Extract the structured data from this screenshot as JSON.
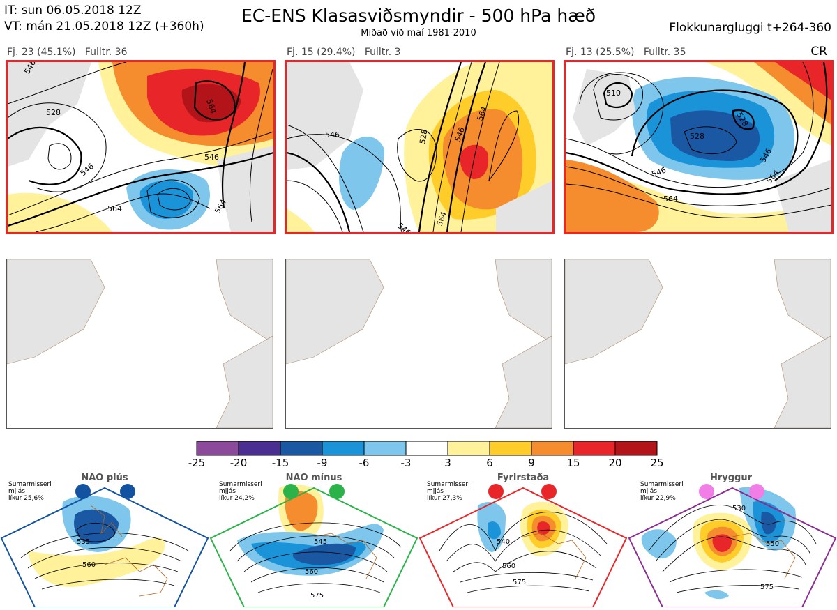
{
  "header": {
    "it_line": "IT: sun 06.05.2018 12Z",
    "vt_line": "VT: mán 21.05.2018 12Z  (+360h)",
    "title": "EC-ENS Klasasviðsmyndir - 500 hPa hæð",
    "subtitle": "Miðað við maí 1981-2010",
    "window": "Flokkunargluggi t+264-360"
  },
  "clusters": [
    {
      "caption": "Fj. 23 (45.1%)   Fulltr. 36",
      "contour_labels": [
        "528",
        "546",
        "546",
        "564",
        "564",
        "564",
        "546"
      ]
    },
    {
      "caption": "Fj. 15 (29.4%)   Fulltr. 3",
      "contour_labels": [
        "546",
        "528",
        "546",
        "564",
        "546",
        "564"
      ]
    },
    {
      "caption": "Fj. 13 (25.5%)   Fulltr. 35",
      "tag": "CR",
      "contour_labels": [
        "510",
        "528",
        "546",
        "564",
        "546",
        "528",
        "564"
      ]
    }
  ],
  "colorbar": {
    "ticks": [
      "-25",
      "-20",
      "-15",
      "-9",
      "-6",
      "-3",
      "3",
      "6",
      "9",
      "15",
      "20",
      "25"
    ],
    "colors": [
      "#8b4a9a",
      "#4a2e91",
      "#1b58a3",
      "#1a93d8",
      "#7ec6ec",
      "#ffffff",
      "#fff29a",
      "#ffcd2a",
      "#f58c2e",
      "#e8262a",
      "#b3141a"
    ]
  },
  "regimes": [
    {
      "name": "NAO plús",
      "info": [
        "Sumarmisseri",
        "mjjás",
        "líkur 25,6%"
      ],
      "dot_color": "#1352a0",
      "frame_color": "#1352a0",
      "labels": [
        "535",
        "560"
      ]
    },
    {
      "name": "NAO mínus",
      "info": [
        "Sumarmisseri",
        "mjjás",
        "líkur 24,2%"
      ],
      "dot_color": "#2bb34a",
      "frame_color": "#2bb34a",
      "labels": [
        "545",
        "560",
        "575"
      ]
    },
    {
      "name": "Fyrirstaða",
      "info": [
        "Sumarmisseri",
        "mjjás",
        "líkur 27,3%"
      ],
      "dot_color": "#e8262a",
      "frame_color": "#e8262a",
      "labels": [
        "540",
        "560",
        "575"
      ]
    },
    {
      "name": "Hryggur",
      "info": [
        "Sumarmisseri",
        "mjjás",
        "líkur 22,9%"
      ],
      "dot_color": "#f07ee6",
      "frame_color": "#8b2c91",
      "labels": [
        "530",
        "550",
        "575"
      ]
    }
  ]
}
